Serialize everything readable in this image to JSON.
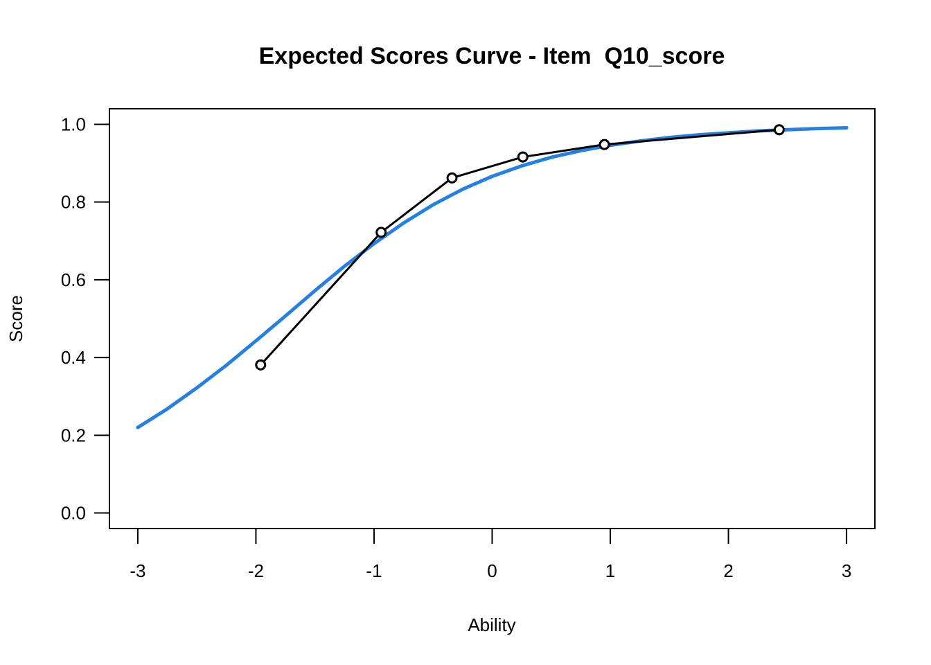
{
  "chart_data": {
    "type": "line",
    "title": "Expected Scores Curve - Item  Q10_score",
    "xlabel": "Ability",
    "ylabel": "Score",
    "xlim": [
      -3.24,
      3.24
    ],
    "ylim": [
      -0.04,
      1.04
    ],
    "x_ticks": [
      -3,
      -2,
      -1,
      0,
      1,
      2,
      3
    ],
    "x_tick_labels": [
      "-3",
      "-2",
      "-1",
      "0",
      "1",
      "2",
      "3"
    ],
    "y_ticks": [
      0.0,
      0.2,
      0.4,
      0.6,
      0.8,
      1.0
    ],
    "y_tick_labels": [
      "0.0",
      "0.2",
      "0.4",
      "0.6",
      "0.8",
      "1.0"
    ],
    "grid": false,
    "legend": "none",
    "series": [
      {
        "kind": "curve",
        "color": "#2580E0",
        "x": [
          -3.0,
          -2.75,
          -2.5,
          -2.25,
          -2.0,
          -1.75,
          -1.5,
          -1.25,
          -1.0,
          -0.75,
          -0.5,
          -0.25,
          0.0,
          0.25,
          0.5,
          0.75,
          1.0,
          1.25,
          1.5,
          1.75,
          2.0,
          2.25,
          2.5,
          2.75,
          3.0
        ],
        "y": [
          0.22,
          0.268,
          0.322,
          0.38,
          0.443,
          0.507,
          0.572,
          0.635,
          0.693,
          0.746,
          0.793,
          0.833,
          0.866,
          0.893,
          0.915,
          0.932,
          0.946,
          0.957,
          0.966,
          0.973,
          0.978,
          0.983,
          0.986,
          0.989,
          0.991
        ]
      },
      {
        "kind": "observed",
        "color": "#000000",
        "x": [
          -1.96,
          -0.94,
          -0.34,
          0.26,
          0.95,
          2.43
        ],
        "y": [
          0.381,
          0.722,
          0.862,
          0.916,
          0.948,
          0.986
        ]
      }
    ]
  }
}
